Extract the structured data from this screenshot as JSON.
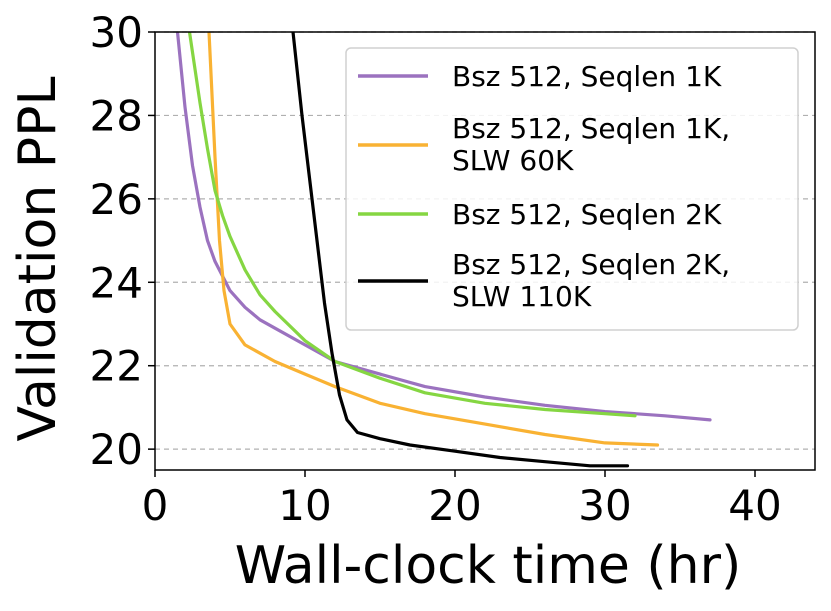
{
  "chart_data": {
    "type": "line",
    "title": "",
    "xlabel": "Wall-clock time (hr)",
    "ylabel": "Validation PPL",
    "xlim": [
      0,
      44
    ],
    "ylim": [
      19.5,
      30
    ],
    "xticks": [
      "0",
      "10",
      "20",
      "30",
      "40"
    ],
    "yticks": [
      "20",
      "22",
      "24",
      "26",
      "28",
      "30"
    ],
    "grid": "horizontal dashed",
    "legend_position": "upper-right",
    "series": [
      {
        "name": "Bsz 512, Seqlen 1K",
        "color": "#9b72bf",
        "x": [
          1.5,
          2,
          2.5,
          3,
          3.5,
          4,
          5,
          6,
          7,
          8,
          10,
          12,
          15,
          18,
          22,
          26,
          30,
          34,
          37
        ],
        "y": [
          30,
          28.2,
          26.8,
          25.8,
          25.0,
          24.5,
          23.8,
          23.4,
          23.1,
          22.9,
          22.5,
          22.1,
          21.8,
          21.5,
          21.25,
          21.05,
          20.9,
          20.8,
          20.7
        ]
      },
      {
        "name": "Bsz 512, Seqlen 1K, SLW 60K",
        "color": "#f9b233",
        "x": [
          3.6,
          4.0,
          4.3,
          4.6,
          5.0,
          6.0,
          8.0,
          10,
          12,
          15,
          18,
          22,
          26,
          30,
          33.5
        ],
        "y": [
          30,
          27,
          25,
          23.8,
          23.0,
          22.5,
          22.1,
          21.8,
          21.5,
          21.1,
          20.85,
          20.6,
          20.35,
          20.15,
          20.1
        ]
      },
      {
        "name": "Bsz 512, Seqlen 2K",
        "color": "#85d642",
        "x": [
          2.3,
          3,
          3.5,
          4,
          4.5,
          5,
          6,
          7,
          8,
          10,
          12,
          15,
          18,
          22,
          26,
          30,
          32
        ],
        "y": [
          30,
          28.3,
          27.2,
          26.2,
          25.6,
          25.1,
          24.3,
          23.7,
          23.3,
          22.6,
          22.1,
          21.7,
          21.35,
          21.1,
          20.95,
          20.85,
          20.8
        ]
      },
      {
        "name": "Bsz 512, Seqlen 2K, SLW 110K",
        "color": "#000000",
        "x": [
          9.2,
          9.8,
          10.3,
          10.8,
          11.3,
          11.8,
          12.3,
          12.8,
          13.5,
          15,
          17,
          20,
          23,
          26,
          29,
          31.5
        ],
        "y": [
          30,
          28,
          26.5,
          25,
          23.5,
          22.3,
          21.3,
          20.7,
          20.4,
          20.25,
          20.1,
          19.95,
          19.8,
          19.7,
          19.6,
          19.6
        ]
      }
    ]
  }
}
